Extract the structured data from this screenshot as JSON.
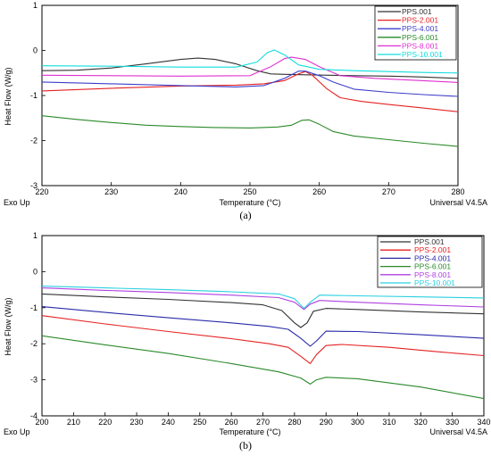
{
  "chart_data": [
    {
      "type": "line",
      "panel_caption": "(a)",
      "xlabel": "Temperature (°C)",
      "ylabel": "Heat Flow (W/g)",
      "corner_left": "Exo Up",
      "corner_right": "Universal V4.5A",
      "xlim": [
        220,
        280
      ],
      "ylim": [
        -3,
        1
      ],
      "xticks": [
        220,
        230,
        240,
        250,
        260,
        270,
        280
      ],
      "yticks": [
        -3,
        -2,
        -1,
        0,
        1
      ],
      "grid": false,
      "legend_position": "top-right",
      "series": [
        {
          "name": "PPS.001",
          "color": "#333333",
          "points": [
            [
              220,
              -0.45
            ],
            [
              225,
              -0.44
            ],
            [
              230,
              -0.39
            ],
            [
              235,
              -0.3
            ],
            [
              240,
              -0.2
            ],
            [
              242.5,
              -0.17
            ],
            [
              245,
              -0.2
            ],
            [
              248,
              -0.3
            ],
            [
              251,
              -0.45
            ],
            [
              253,
              -0.52
            ],
            [
              255,
              -0.53
            ],
            [
              258,
              -0.54
            ],
            [
              265,
              -0.56
            ],
            [
              270,
              -0.57
            ],
            [
              275,
              -0.59
            ],
            [
              280,
              -0.62
            ]
          ]
        },
        {
          "name": "PPS-2.001",
          "color": "#e52222",
          "points": [
            [
              220,
              -0.9
            ],
            [
              230,
              -0.84
            ],
            [
              240,
              -0.79
            ],
            [
              248,
              -0.77
            ],
            [
              252,
              -0.74
            ],
            [
              255,
              -0.67
            ],
            [
              257,
              -0.52
            ],
            [
              258,
              -0.47
            ],
            [
              259,
              -0.55
            ],
            [
              261,
              -0.84
            ],
            [
              263,
              -1.05
            ],
            [
              266,
              -1.13
            ],
            [
              270,
              -1.2
            ],
            [
              275,
              -1.28
            ],
            [
              280,
              -1.36
            ]
          ]
        },
        {
          "name": "PPS-4.001",
          "color": "#3d3dcc",
          "points": [
            [
              220,
              -0.7
            ],
            [
              230,
              -0.74
            ],
            [
              240,
              -0.78
            ],
            [
              248,
              -0.81
            ],
            [
              252,
              -0.78
            ],
            [
              255,
              -0.62
            ],
            [
              257,
              -0.46
            ],
            [
              258,
              -0.46
            ],
            [
              260,
              -0.56
            ],
            [
              262,
              -0.7
            ],
            [
              265,
              -0.86
            ],
            [
              270,
              -0.93
            ],
            [
              275,
              -0.98
            ],
            [
              280,
              -1.02
            ]
          ]
        },
        {
          "name": "PPS-6.001",
          "color": "#2a8a2a",
          "points": [
            [
              220,
              -1.45
            ],
            [
              225,
              -1.53
            ],
            [
              230,
              -1.6
            ],
            [
              235,
              -1.66
            ],
            [
              240,
              -1.69
            ],
            [
              245,
              -1.71
            ],
            [
              250,
              -1.72
            ],
            [
              254,
              -1.7
            ],
            [
              256,
              -1.66
            ],
            [
              257.5,
              -1.55
            ],
            [
              258.5,
              -1.54
            ],
            [
              260,
              -1.64
            ],
            [
              262,
              -1.8
            ],
            [
              265,
              -1.9
            ],
            [
              270,
              -1.98
            ],
            [
              275,
              -2.06
            ],
            [
              280,
              -2.13
            ]
          ]
        },
        {
          "name": "PPS-8.001",
          "color": "#e030d0",
          "points": [
            [
              220,
              -0.55
            ],
            [
              230,
              -0.56
            ],
            [
              240,
              -0.57
            ],
            [
              250,
              -0.56
            ],
            [
              253,
              -0.36
            ],
            [
              255,
              -0.18
            ],
            [
              256,
              -0.15
            ],
            [
              258,
              -0.2
            ],
            [
              260,
              -0.36
            ],
            [
              263,
              -0.56
            ],
            [
              268,
              -0.62
            ],
            [
              272,
              -0.65
            ],
            [
              276,
              -0.68
            ],
            [
              280,
              -0.71
            ]
          ]
        },
        {
          "name": "PPS-10.001",
          "color": "#11dddd",
          "points": [
            [
              220,
              -0.34
            ],
            [
              230,
              -0.35
            ],
            [
              240,
              -0.37
            ],
            [
              248,
              -0.37
            ],
            [
              251,
              -0.26
            ],
            [
              252.5,
              -0.05
            ],
            [
              253.5,
              0.01
            ],
            [
              255,
              -0.1
            ],
            [
              257,
              -0.32
            ],
            [
              260,
              -0.42
            ],
            [
              265,
              -0.45
            ],
            [
              270,
              -0.47
            ],
            [
              275,
              -0.49
            ],
            [
              280,
              -0.5
            ]
          ]
        }
      ]
    },
    {
      "type": "line",
      "panel_caption": "(b)",
      "xlabel": "Temperature (°C)",
      "ylabel": "Heat Flow (W/g)",
      "corner_left": "Exo Up",
      "corner_right": "Universal V4.5A",
      "xlim": [
        200,
        340
      ],
      "ylim": [
        -4,
        1
      ],
      "xticks": [
        200,
        210,
        220,
        230,
        240,
        250,
        260,
        270,
        280,
        290,
        300,
        310,
        320,
        330,
        340
      ],
      "yticks": [
        -4,
        -3,
        -2,
        -1,
        0,
        1
      ],
      "grid": false,
      "legend_position": "top-right",
      "series": [
        {
          "name": "PPS.001",
          "color": "#333333",
          "points": [
            [
              200,
              -0.62
            ],
            [
              220,
              -0.7
            ],
            [
              240,
              -0.77
            ],
            [
              260,
              -0.86
            ],
            [
              270,
              -0.92
            ],
            [
              276,
              -1.08
            ],
            [
              280,
              -1.42
            ],
            [
              282,
              -1.55
            ],
            [
              284,
              -1.42
            ],
            [
              286,
              -1.1
            ],
            [
              290,
              -1.02
            ],
            [
              300,
              -1.05
            ],
            [
              320,
              -1.12
            ],
            [
              340,
              -1.17
            ]
          ]
        },
        {
          "name": "PPS-2.001",
          "color": "#e52222",
          "points": [
            [
              200,
              -1.22
            ],
            [
              220,
              -1.45
            ],
            [
              240,
              -1.66
            ],
            [
              260,
              -1.86
            ],
            [
              272,
              -2.0
            ],
            [
              278,
              -2.1
            ],
            [
              282,
              -2.35
            ],
            [
              285,
              -2.55
            ],
            [
              287,
              -2.3
            ],
            [
              290,
              -2.05
            ],
            [
              295,
              -2.02
            ],
            [
              310,
              -2.1
            ],
            [
              325,
              -2.22
            ],
            [
              340,
              -2.33
            ]
          ]
        },
        {
          "name": "PPS-4.001",
          "color": "#2a2aaa",
          "points": [
            [
              200,
              -0.97
            ],
            [
              220,
              -1.13
            ],
            [
              240,
              -1.28
            ],
            [
              260,
              -1.42
            ],
            [
              272,
              -1.52
            ],
            [
              278,
              -1.6
            ],
            [
              282,
              -1.85
            ],
            [
              285,
              -2.07
            ],
            [
              287,
              -1.92
            ],
            [
              290,
              -1.65
            ],
            [
              300,
              -1.66
            ],
            [
              320,
              -1.75
            ],
            [
              340,
              -1.85
            ]
          ]
        },
        {
          "name": "PPS-6.001",
          "color": "#2a8a2a",
          "points": [
            [
              200,
              -1.78
            ],
            [
              220,
              -2.03
            ],
            [
              240,
              -2.27
            ],
            [
              260,
              -2.55
            ],
            [
              275,
              -2.78
            ],
            [
              282,
              -2.95
            ],
            [
              285,
              -3.12
            ],
            [
              287,
              -3.0
            ],
            [
              290,
              -2.93
            ],
            [
              300,
              -2.97
            ],
            [
              320,
              -3.2
            ],
            [
              340,
              -3.52
            ]
          ]
        },
        {
          "name": "PPS-8.001",
          "color": "#b040e0",
          "points": [
            [
              200,
              -0.45
            ],
            [
              220,
              -0.52
            ],
            [
              240,
              -0.58
            ],
            [
              260,
              -0.65
            ],
            [
              275,
              -0.72
            ],
            [
              280,
              -0.85
            ],
            [
              283,
              -1.05
            ],
            [
              285,
              -0.9
            ],
            [
              288,
              -0.8
            ],
            [
              300,
              -0.85
            ],
            [
              320,
              -0.92
            ],
            [
              340,
              -0.98
            ]
          ]
        },
        {
          "name": "PPS-10.001",
          "color": "#2ad0e0",
          "points": [
            [
              200,
              -0.4
            ],
            [
              220,
              -0.45
            ],
            [
              240,
              -0.5
            ],
            [
              260,
              -0.56
            ],
            [
              275,
              -0.62
            ],
            [
              280,
              -0.75
            ],
            [
              283,
              -1.02
            ],
            [
              285,
              -0.85
            ],
            [
              288,
              -0.65
            ],
            [
              300,
              -0.67
            ],
            [
              320,
              -0.7
            ],
            [
              340,
              -0.73
            ]
          ]
        }
      ]
    }
  ]
}
